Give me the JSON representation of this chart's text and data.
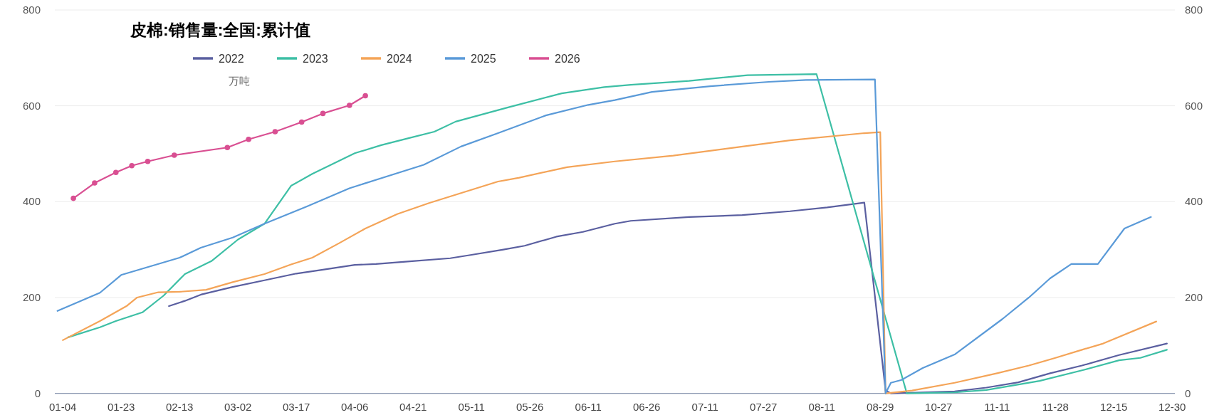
{
  "chart_data": {
    "type": "line",
    "title": "皮棉:销售量:全国:累计值",
    "ylabel": "万吨",
    "categories": [
      null,
      "01-04",
      null,
      null,
      null,
      null,
      null,
      null,
      null,
      null,
      null,
      null,
      "01-23",
      null,
      null,
      null,
      null,
      null,
      null,
      null,
      null,
      null,
      null,
      "02-13",
      null,
      null,
      null,
      null,
      null,
      null,
      null,
      null,
      null,
      null,
      "03-02",
      null,
      null,
      null,
      null,
      null,
      null,
      null,
      null,
      null,
      null,
      "03-17",
      null,
      null,
      null,
      null,
      null,
      null,
      null,
      null,
      null,
      null,
      "04-06",
      null,
      null,
      null,
      null,
      null,
      null,
      null,
      null,
      null,
      null,
      "04-21",
      null,
      null,
      null,
      null,
      null,
      null,
      null,
      null,
      null,
      null,
      "05-11",
      null,
      null,
      null,
      null,
      null,
      null,
      null,
      null,
      null,
      null,
      "05-26",
      null,
      null,
      null,
      null,
      null,
      null,
      null,
      null,
      null,
      null,
      "06-11",
      null,
      null,
      null,
      null,
      null,
      null,
      null,
      null,
      null,
      null,
      "06-26",
      null,
      null,
      null,
      null,
      null,
      null,
      null,
      null,
      null,
      null,
      "07-11",
      null,
      null,
      null,
      null,
      null,
      null,
      null,
      null,
      null,
      null,
      "07-27",
      null,
      null,
      null,
      null,
      null,
      null,
      null,
      null,
      null,
      null,
      "08-11",
      null,
      null,
      null,
      null,
      null,
      null,
      null,
      null,
      null,
      null,
      "08-29",
      null,
      null,
      null,
      null,
      null,
      null,
      null,
      null,
      null,
      null,
      "10-27",
      null,
      null,
      null,
      null,
      null,
      null,
      null,
      null,
      null,
      null,
      "11-11",
      null,
      null,
      null,
      null,
      null,
      null,
      null,
      null,
      null,
      null,
      "11-28",
      null,
      null,
      null,
      null,
      null,
      null,
      null,
      null,
      null,
      null,
      "12-15",
      null,
      null,
      null,
      null,
      null,
      null,
      null,
      null,
      null,
      null,
      "12-30"
    ],
    "ylim": [
      0,
      800
    ],
    "yticks": [
      0,
      200,
      400,
      600,
      800
    ],
    "y2lim": [
      0,
      800
    ],
    "y2ticks": [
      0,
      200,
      400,
      600,
      800
    ],
    "grid": "y",
    "legend": "top",
    "line_style": "solid",
    "series": [
      {
        "name": "2022",
        "color": "#5a5fa0",
        "marker": "none",
        "values": [
          null,
          null,
          null,
          null,
          null,
          null,
          null,
          null,
          null,
          null,
          null,
          null,
          null,
          null,
          null,
          null,
          null,
          null,
          null,
          null,
          null,
          182,
          null,
          null,
          193,
          null,
          null,
          206,
          null,
          null,
          null,
          null,
          null,
          222,
          null,
          null,
          null,
          null,
          null,
          236,
          null,
          null,
          null,
          null,
          null,
          250,
          null,
          null,
          null,
          null,
          258,
          null,
          null,
          null,
          null,
          null,
          268,
          null,
          null,
          null,
          270,
          null,
          null,
          null,
          null,
          null,
          275,
          null,
          null,
          null,
          null,
          null,
          null,
          null,
          282,
          null,
          null,
          null,
          289,
          null,
          null,
          null,
          null,
          null,
          300,
          null,
          null,
          null,
          308,
          null,
          null,
          null,
          null,
          null,
          327,
          null,
          null,
          null,
          null,
          337,
          null,
          null,
          null,
          null,
          null,
          354,
          null,
          null,
          360,
          null,
          null,
          null,
          null,
          null,
          null,
          null,
          null,
          null,
          null,
          368,
          null,
          null,
          null,
          null,
          null,
          null,
          null,
          null,
          null,
          372,
          null,
          null,
          null,
          null,
          null,
          null,
          null,
          null,
          380,
          null,
          null,
          null,
          null,
          null,
          null,
          388,
          null,
          null,
          null,
          null,
          null,
          null,
          398,
          null,
          null,
          null,
          6,
          0,
          null,
          null,
          null,
          null,
          null,
          null,
          null,
          null,
          null,
          null,
          null,
          4,
          null,
          null,
          null,
          null,
          null,
          12,
          null,
          null,
          null,
          null,
          null,
          23,
          null,
          null,
          null,
          null,
          null,
          42,
          null,
          null,
          null,
          null,
          null,
          58,
          null,
          null,
          null,
          null,
          null,
          null,
          80,
          null,
          null,
          null,
          null,
          null,
          null,
          null,
          null,
          104,
          null
        ]
      },
      {
        "name": "2023",
        "color": "#3dbfa5",
        "marker": "none",
        "values": [
          null,
          null,
          117,
          null,
          null,
          null,
          null,
          null,
          138,
          null,
          null,
          151,
          null,
          null,
          null,
          null,
          169,
          null,
          null,
          null,
          204,
          null,
          null,
          null,
          249,
          null,
          null,
          null,
          null,
          276,
          null,
          null,
          null,
          null,
          321,
          null,
          null,
          null,
          null,
          354,
          null,
          null,
          null,
          null,
          433,
          null,
          null,
          null,
          458,
          null,
          null,
          null,
          null,
          null,
          null,
          null,
          501,
          null,
          null,
          null,
          null,
          518,
          null,
          null,
          null,
          null,
          532,
          null,
          null,
          null,
          null,
          546,
          null,
          null,
          null,
          567,
          null,
          null,
          null,
          null,
          null,
          null,
          null,
          null,
          null,
          597,
          null,
          null,
          null,
          null,
          null,
          null,
          null,
          null,
          null,
          626,
          null,
          null,
          null,
          null,
          null,
          null,
          null,
          639,
          null,
          null,
          null,
          null,
          644,
          null,
          null,
          null,
          null,
          null,
          null,
          null,
          null,
          null,
          null,
          652,
          null,
          null,
          null,
          null,
          null,
          null,
          null,
          null,
          null,
          null,
          664,
          null,
          null,
          null,
          null,
          null,
          null,
          null,
          null,
          null,
          null,
          null,
          null,
          666,
          null,
          null,
          null,
          null,
          null,
          null,
          null,
          null,
          null,
          null,
          null,
          null,
          null,
          null,
          null,
          null,
          0,
          null,
          null,
          null,
          null,
          null,
          null,
          null,
          null,
          2,
          null,
          null,
          null,
          null,
          null,
          7,
          null,
          null,
          null,
          null,
          null,
          null,
          null,
          null,
          null,
          26,
          null,
          null,
          null,
          null,
          null,
          null,
          null,
          48,
          null,
          null,
          null,
          null,
          null,
          null,
          69,
          null,
          null,
          null,
          74,
          null,
          null,
          null,
          null,
          91,
          null
        ]
      },
      {
        "name": "2024",
        "color": "#f4a458",
        "marker": "none",
        "values": [
          null,
          111,
          null,
          null,
          null,
          null,
          null,
          null,
          151,
          null,
          null,
          null,
          null,
          182,
          null,
          200,
          null,
          null,
          null,
          211,
          null,
          null,
          null,
          212,
          null,
          null,
          null,
          null,
          216,
          null,
          null,
          null,
          null,
          232,
          null,
          null,
          null,
          null,
          null,
          249,
          null,
          null,
          null,
          null,
          269,
          null,
          null,
          null,
          283,
          null,
          null,
          null,
          null,
          313,
          null,
          null,
          null,
          null,
          344,
          null,
          null,
          null,
          null,
          null,
          374,
          null,
          null,
          null,
          null,
          null,
          397,
          null,
          null,
          null,
          null,
          null,
          null,
          null,
          null,
          null,
          null,
          null,
          null,
          442,
          null,
          null,
          null,
          450,
          null,
          null,
          null,
          null,
          null,
          null,
          null,
          null,
          472,
          null,
          null,
          null,
          null,
          null,
          null,
          null,
          null,
          484,
          null,
          null,
          null,
          null,
          null,
          null,
          null,
          null,
          null,
          null,
          496,
          null,
          null,
          null,
          null,
          null,
          null,
          null,
          null,
          null,
          null,
          512,
          null,
          null,
          null,
          null,
          null,
          null,
          null,
          null,
          null,
          null,
          528,
          null,
          null,
          null,
          null,
          null,
          null,
          null,
          null,
          null,
          null,
          null,
          null,
          null,
          543,
          null,
          null,
          545,
          0,
          null,
          null,
          null,
          null,
          6,
          null,
          null,
          null,
          null,
          null,
          null,
          null,
          22,
          null,
          null,
          null,
          null,
          null,
          null,
          null,
          42,
          null,
          null,
          null,
          null,
          null,
          58,
          null,
          null,
          null,
          null,
          74,
          null,
          null,
          null,
          null,
          91,
          null,
          null,
          null,
          104,
          null,
          null,
          null,
          null,
          null,
          null,
          null,
          null,
          null,
          150,
          null,
          null,
          null
        ]
      },
      {
        "name": "2025",
        "color": "#5a9ad8",
        "marker": "none",
        "values": [
          172,
          null,
          null,
          null,
          null,
          null,
          null,
          null,
          210,
          null,
          null,
          null,
          247,
          null,
          null,
          null,
          null,
          null,
          null,
          null,
          null,
          null,
          null,
          283,
          null,
          null,
          null,
          304,
          null,
          null,
          null,
          null,
          null,
          325,
          null,
          null,
          null,
          null,
          null,
          354,
          null,
          null,
          null,
          null,
          null,
          null,
          null,
          390,
          null,
          null,
          null,
          null,
          null,
          null,
          null,
          428,
          null,
          null,
          null,
          null,
          null,
          null,
          null,
          null,
          null,
          null,
          null,
          null,
          null,
          477,
          null,
          null,
          null,
          null,
          null,
          null,
          515,
          null,
          null,
          null,
          null,
          null,
          null,
          543,
          null,
          null,
          null,
          null,
          null,
          null,
          null,
          null,
          580,
          null,
          null,
          null,
          null,
          null,
          null,
          null,
          602,
          null,
          null,
          null,
          null,
          612,
          null,
          null,
          null,
          null,
          null,
          null,
          629,
          null,
          null,
          null,
          null,
          null,
          null,
          null,
          null,
          null,
          null,
          641,
          null,
          null,
          null,
          null,
          null,
          null,
          null,
          null,
          null,
          null,
          650,
          null,
          null,
          null,
          null,
          null,
          null,
          654,
          null,
          null,
          null,
          null,
          null,
          null,
          null,
          null,
          null,
          null,
          null,
          null,
          655,
          null,
          0,
          22,
          null,
          28,
          null,
          null,
          null,
          53,
          null,
          null,
          null,
          null,
          null,
          81,
          null,
          null,
          null,
          null,
          null,
          null,
          null,
          null,
          155,
          null,
          null,
          null,
          null,
          200,
          null,
          null,
          null,
          240,
          null,
          null,
          null,
          270,
          null,
          null,
          null,
          null,
          270,
          null,
          null,
          null,
          null,
          344,
          null,
          null,
          null,
          null,
          368,
          null,
          null,
          null,
          null
        ]
      },
      {
        "name": "2026",
        "color": "#d94f92",
        "marker": "circle",
        "values": [
          null,
          null,
          null,
          407,
          null,
          null,
          null,
          439,
          null,
          null,
          null,
          461,
          null,
          null,
          475,
          null,
          null,
          484,
          null,
          null,
          null,
          null,
          497,
          null,
          null,
          null,
          null,
          null,
          null,
          null,
          null,
          null,
          513,
          null,
          null,
          null,
          530,
          null,
          null,
          null,
          null,
          546,
          null,
          null,
          null,
          null,
          566,
          null,
          null,
          null,
          584,
          null,
          null,
          null,
          null,
          601,
          null,
          null,
          621,
          null,
          null,
          null,
          null,
          null,
          null,
          null,
          null,
          null,
          null,
          null,
          null,
          null,
          null,
          null,
          null,
          null,
          null,
          null,
          null,
          null,
          null,
          null,
          null,
          null,
          null,
          null,
          null,
          null,
          null,
          null,
          null,
          null,
          null,
          null,
          null,
          null,
          null,
          null,
          null,
          null,
          null,
          null,
          null,
          null,
          null,
          null,
          null,
          null,
          null,
          null,
          null,
          null,
          null,
          null,
          null,
          null,
          null,
          null,
          null,
          null,
          null,
          null,
          null,
          null,
          null,
          null,
          null,
          null,
          null,
          null,
          null,
          null,
          null,
          null,
          null,
          null,
          null,
          null,
          null,
          null,
          null,
          null,
          null,
          null,
          null,
          null,
          null,
          null,
          null,
          null,
          null,
          null,
          null,
          null,
          null,
          null,
          null,
          null,
          null,
          null,
          null,
          null,
          null,
          null,
          null,
          null,
          null,
          null,
          null,
          null,
          null,
          null,
          null,
          null,
          null,
          null,
          null,
          null,
          null,
          null,
          null,
          null,
          null,
          null,
          null,
          null,
          null,
          null,
          null,
          null,
          null,
          null,
          null,
          null,
          null,
          null,
          null,
          null,
          null,
          null,
          null,
          null,
          null,
          null,
          null,
          null,
          null,
          null,
          null,
          null,
          null
        ]
      }
    ]
  }
}
